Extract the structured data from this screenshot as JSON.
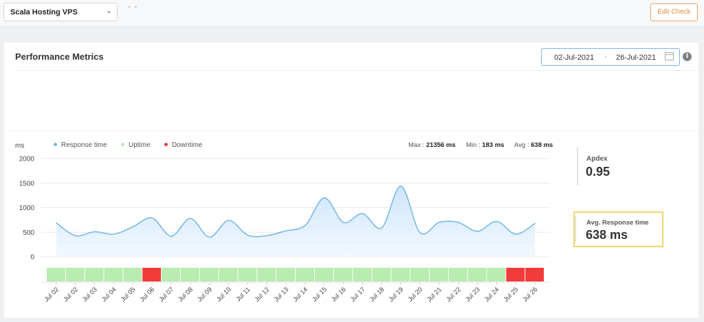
{
  "header": {
    "monitor_select": "Scala Hosting VPS",
    "subtitle": "- -",
    "edit_label": "Edit Check"
  },
  "card": {
    "title": "Performance Metrics",
    "date_from": "02-Jul-2021",
    "date_sep": "-",
    "date_to": "26-Jul-2021"
  },
  "legend": [
    {
      "label": "Response time",
      "color": "#7ab8e8"
    },
    {
      "label": "Uptime",
      "color": "#b8ecb0"
    },
    {
      "label": "Downtime",
      "color": "#f23b3b"
    }
  ],
  "stats": {
    "max_label": "Max",
    "max_value": "21356 ms",
    "min_label": "Min",
    "min_value": "183 ms",
    "avg_label": "Avg",
    "avg_value": "638 ms"
  },
  "apdex": {
    "label": "Apdex",
    "value": "0.95"
  },
  "avg_response": {
    "label": "Avg. Response time",
    "value": "638 ms"
  },
  "chart_data": {
    "type": "area",
    "ylabel": "ms",
    "ylim": [
      0,
      2000
    ],
    "yticks": [
      0,
      500,
      1000,
      1500,
      2000
    ],
    "grid": true,
    "legend_placement": "top-left",
    "series": [
      {
        "name": "Response time",
        "color": "#7ab8e8",
        "values": [
          690,
          430,
          510,
          460,
          610,
          790,
          420,
          780,
          400,
          740,
          440,
          430,
          530,
          640,
          1200,
          700,
          880,
          590,
          1440,
          490,
          700,
          700,
          520,
          720,
          460,
          680
        ]
      }
    ],
    "status_labels": [
      "Jul 02",
      "Jul 02",
      "Jul 03",
      "Jul 04",
      "Jul 05",
      "Jul 06",
      "Jul 07",
      "Jul 08",
      "Jul 09",
      "Jul 10",
      "Jul 11",
      "Jul 12",
      "Jul 13",
      "Jul 14",
      "Jul 15",
      "Jul 16",
      "Jul 17",
      "Jul 18",
      "Jul 19",
      "Jul 20",
      "Jul 21",
      "Jul 22",
      "Jul 23",
      "Jul 24",
      "Jul 25",
      "Jul 26"
    ],
    "status": [
      "up",
      "up",
      "up",
      "up",
      "up",
      "down",
      "up",
      "up",
      "up",
      "up",
      "up",
      "up",
      "up",
      "up",
      "up",
      "up",
      "up",
      "up",
      "up",
      "up",
      "up",
      "up",
      "up",
      "up",
      "down",
      "down"
    ],
    "status_colors": {
      "up": "#b8ecb0",
      "down": "#f23b3b"
    }
  }
}
